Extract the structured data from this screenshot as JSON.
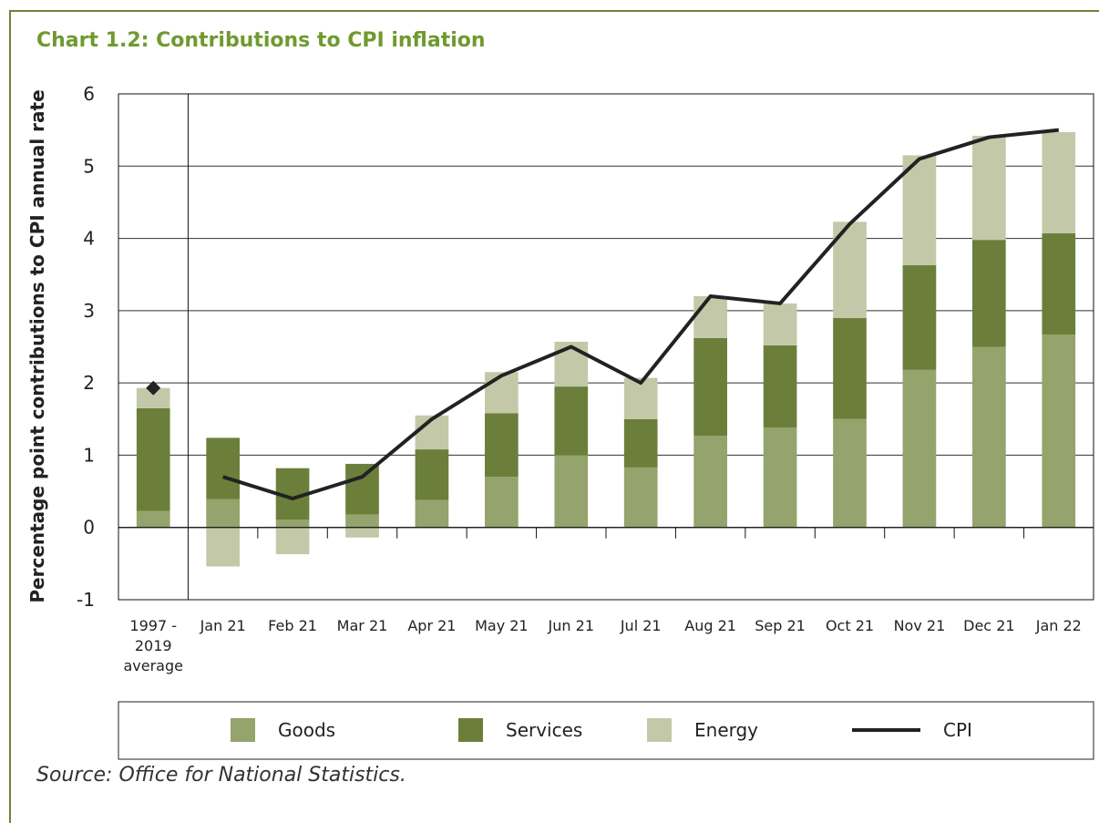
{
  "chart_data": {
    "type": "stacked_bar_line",
    "title": "Chart 1.2: Contributions to CPI inflation",
    "y_label": "Percentage point contributions to CPI annual rate",
    "source": "Source: Office for National Statistics.",
    "categories": [
      "1997 - 2019 average",
      "Jan 21",
      "Feb 21",
      "Mar 21",
      "Apr 21",
      "May 21",
      "Jun 21",
      "Jul 21",
      "Aug 21",
      "Sep 21",
      "Oct 21",
      "Nov 21",
      "Dec 21",
      "Jan 22"
    ],
    "series": [
      {
        "name": "Goods",
        "color": "#95a36c",
        "values": [
          0.23,
          0.39,
          0.11,
          0.18,
          0.38,
          0.7,
          1.0,
          0.83,
          1.27,
          1.38,
          1.5,
          2.18,
          2.5,
          2.67
        ]
      },
      {
        "name": "Services",
        "color": "#6b7f3b",
        "values": [
          1.42,
          0.85,
          0.71,
          0.7,
          0.7,
          0.88,
          0.95,
          0.67,
          1.35,
          1.14,
          1.4,
          1.45,
          1.48,
          1.4
        ]
      },
      {
        "name": "Energy",
        "color": "#c3c9a8",
        "values": [
          0.28,
          -0.54,
          -0.37,
          -0.14,
          0.47,
          0.57,
          0.62,
          0.57,
          0.58,
          0.58,
          1.33,
          1.52,
          1.44,
          1.4
        ]
      },
      {
        "name": "CPI",
        "type": "line",
        "color": "#222222",
        "values": [
          1.93,
          0.7,
          0.4,
          0.7,
          1.5,
          2.1,
          2.5,
          2.0,
          3.2,
          3.1,
          4.2,
          5.1,
          5.4,
          5.5
        ]
      }
    ],
    "ylim": [
      -1,
      6
    ],
    "yticks": [
      -1,
      0,
      1,
      2,
      3,
      4,
      5,
      6
    ],
    "grid": true
  }
}
